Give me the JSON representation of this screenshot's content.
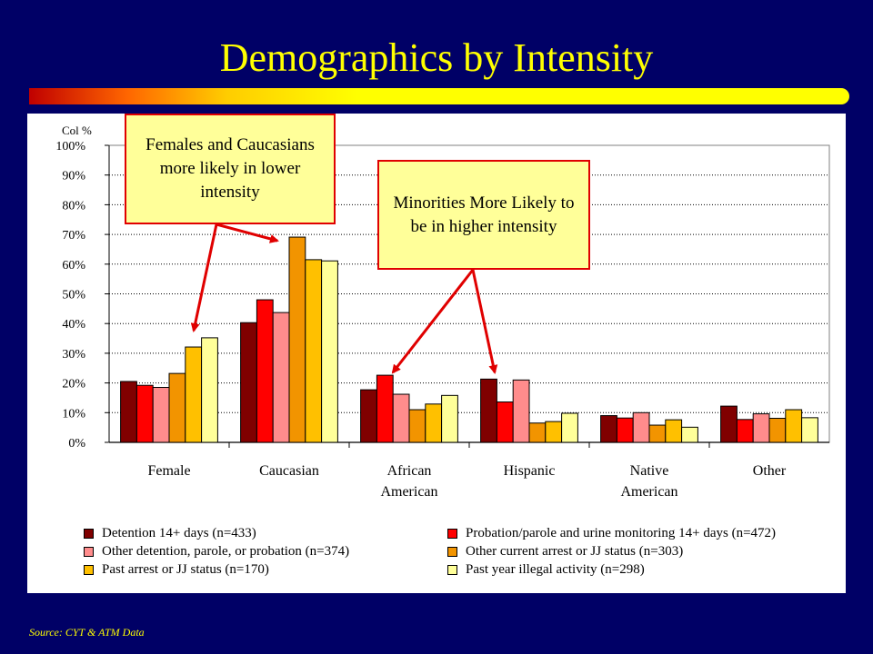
{
  "title": "Demographics by Intensity",
  "source": "Source: CYT & ATM Data",
  "callouts": [
    {
      "text": "Females and Caucasians more likely in lower intensity"
    },
    {
      "text": "Minorities More Likely to be in higher intensity"
    }
  ],
  "colors": {
    "background": "#000066",
    "title": "#ffff00",
    "callout_fill": "#ffff99",
    "callout_border": "#e00000"
  },
  "chart_data": {
    "type": "bar",
    "ylabel": "Col %",
    "ylim": [
      0,
      100
    ],
    "yticks": [
      "0%",
      "10%",
      "20%",
      "30%",
      "40%",
      "50%",
      "60%",
      "70%",
      "80%",
      "90%",
      "100%"
    ],
    "grid": true,
    "legend_position": "bottom",
    "categories": [
      [
        "Female"
      ],
      [
        "Caucasian"
      ],
      [
        "African",
        "American"
      ],
      [
        "Hispanic"
      ],
      [
        "Native",
        "American"
      ],
      [
        "Other"
      ]
    ],
    "series": [
      {
        "name": "Detention 14+ days (n=433)",
        "color": "#800000",
        "values": [
          20.5,
          40.3,
          17.7,
          21.3,
          9.0,
          12.2
        ]
      },
      {
        "name": "Probation/parole and urine monitoring 14+ days (n=472)",
        "color": "#ff0000",
        "values": [
          19.2,
          48.0,
          22.6,
          13.6,
          8.2,
          7.7
        ]
      },
      {
        "name": "Other detention, parole, or probation (n=374)",
        "color": "#ff8c8c",
        "values": [
          18.5,
          43.7,
          16.2,
          21.0,
          10.0,
          9.6
        ]
      },
      {
        "name": "Other current arrest or JJ status (n=303)",
        "color": "#f29400",
        "values": [
          23.2,
          69.1,
          11.0,
          6.5,
          5.8,
          8.1
        ]
      },
      {
        "name": "Past arrest or JJ status (n=170)",
        "color": "#ffc000",
        "values": [
          32.1,
          61.5,
          12.9,
          7.0,
          7.6,
          11.0
        ]
      },
      {
        "name": "Past year illegal activity  (n=298)",
        "color": "#ffff99",
        "values": [
          35.2,
          61.1,
          15.8,
          9.8,
          5.1,
          8.3
        ]
      }
    ]
  }
}
